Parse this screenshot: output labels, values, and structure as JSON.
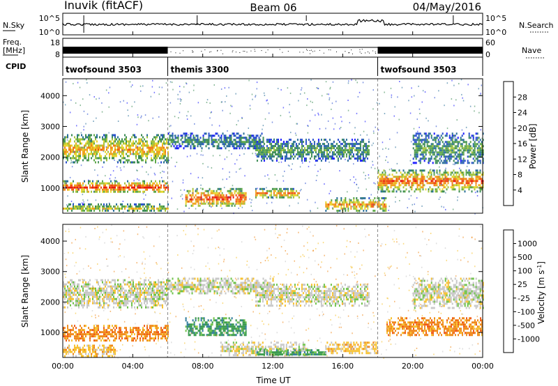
{
  "header": {
    "station": "Inuvik (fitACF)",
    "beam": "Beam 06",
    "date": "04/May/2016"
  },
  "left_labels": {
    "nsky": "N.Sky",
    "freq": "Freq.",
    "freq_unit": "[MHz]",
    "cpid": "CPID"
  },
  "right_labels": {
    "nsearch": "N.Search",
    "nave": "Nave"
  },
  "cpid_segments": [
    {
      "label": "twofsound 3503",
      "start_h": 0,
      "end_h": 6
    },
    {
      "label": "themis 3300",
      "start_h": 6,
      "end_h": 18
    },
    {
      "label": "twofsound 3503",
      "start_h": 18,
      "end_h": 24
    }
  ],
  "noise_axis": {
    "left_ticks": [
      "10^5",
      "10^0"
    ],
    "right_ticks": [
      "10^5",
      "10^0"
    ]
  },
  "freq_axis": {
    "left_ticks": [
      "18",
      "8"
    ],
    "right_ticks": [
      "60",
      "0"
    ]
  },
  "x_axis": {
    "label": "Time UT",
    "ticks": [
      "00:00",
      "04:00",
      "08:00",
      "12:00",
      "16:00",
      "20:00",
      "00:00"
    ],
    "range_hours": [
      0,
      24
    ]
  },
  "chart_data": [
    {
      "type": "heatmap",
      "name": "power",
      "ylabel": "Slant Range [km]",
      "yticks": [
        "1000",
        "2000",
        "3000",
        "4000"
      ],
      "ylim": [
        180,
        4550
      ],
      "xlim": [
        0,
        24
      ],
      "colorbar": {
        "label": "Power [dB]",
        "ticks": [
          "4",
          "8",
          "12",
          "16",
          "20",
          "24",
          "28"
        ],
        "range": [
          0,
          30
        ],
        "colors": [
          "#1a1aff",
          "#2a4fcf",
          "#2a6f9a",
          "#3c8c55",
          "#5fa84a",
          "#a4c43e",
          "#e8d62e",
          "#f0a21e",
          "#f07a1a",
          "#f04a14",
          "#e81a10"
        ]
      },
      "echo_bands": [
        {
          "t0": 0.0,
          "t1": 6.0,
          "r0": 1850,
          "r1": 2750,
          "level": 0.55
        },
        {
          "t0": 0.0,
          "t1": 6.0,
          "r0": 850,
          "r1": 1250,
          "level": 0.7
        },
        {
          "t0": 0.0,
          "t1": 6.0,
          "r0": 250,
          "r1": 500,
          "level": 0.45
        },
        {
          "t0": 6.0,
          "t1": 11.5,
          "r0": 2300,
          "r1": 2800,
          "level": 0.25
        },
        {
          "t0": 7.0,
          "t1": 10.5,
          "r0": 400,
          "r1": 1000,
          "level": 0.7
        },
        {
          "t0": 11.0,
          "t1": 17.5,
          "r0": 1900,
          "r1": 2600,
          "level": 0.3
        },
        {
          "t0": 11.0,
          "t1": 13.5,
          "r0": 700,
          "r1": 1000,
          "level": 0.6
        },
        {
          "t0": 15.0,
          "t1": 18.5,
          "r0": 250,
          "r1": 700,
          "level": 0.6
        },
        {
          "t0": 18.0,
          "t1": 24.0,
          "r0": 900,
          "r1": 1600,
          "level": 0.65
        },
        {
          "t0": 20.0,
          "t1": 24.0,
          "r0": 1800,
          "r1": 2800,
          "level": 0.3
        }
      ]
    },
    {
      "type": "heatmap",
      "name": "velocity",
      "ylabel": "Slant Range [km]",
      "yticks": [
        "1000",
        "2000",
        "3000",
        "4000"
      ],
      "ylim": [
        180,
        4550
      ],
      "xlim": [
        0,
        24
      ],
      "colorbar": {
        "label": "Velocity [m s^-1]",
        "ticks": [
          "1000",
          "500",
          "100",
          "25",
          "-25",
          "-100",
          "-500",
          "-1000"
        ],
        "colors": [
          "#2d4fc0",
          "#2d7a99",
          "#35984a",
          "#6ec248",
          "#c8c8c8",
          "#f7c12e",
          "#f08a1c",
          "#f05a18",
          "#e81a10"
        ]
      },
      "echo_bands": [
        {
          "t0": 0.0,
          "t1": 6.0,
          "r0": 1850,
          "r1": 2750,
          "v": "-25"
        },
        {
          "t0": 0.0,
          "t1": 6.0,
          "r0": 750,
          "r1": 1250,
          "v": "-500"
        },
        {
          "t0": 0.0,
          "t1": 3.0,
          "r0": 250,
          "r1": 600,
          "v": "-100"
        },
        {
          "t0": 6.0,
          "t1": 12.0,
          "r0": 2300,
          "r1": 2800,
          "v": "-25"
        },
        {
          "t0": 7.0,
          "t1": 10.5,
          "r0": 900,
          "r1": 1500,
          "v": "100"
        },
        {
          "t0": 9.0,
          "t1": 14.0,
          "r0": 250,
          "r1": 700,
          "v": "-25"
        },
        {
          "t0": 11.0,
          "t1": 17.5,
          "r0": 1900,
          "r1": 2600,
          "v": "-25"
        },
        {
          "t0": 11.0,
          "t1": 15.0,
          "r0": 250,
          "r1": 450,
          "v": "100"
        },
        {
          "t0": 15.0,
          "t1": 18.0,
          "r0": 300,
          "r1": 700,
          "v": "-100"
        },
        {
          "t0": 18.5,
          "t1": 24.0,
          "r0": 900,
          "r1": 1500,
          "v": "-500"
        },
        {
          "t0": 20.0,
          "t1": 24.0,
          "r0": 1800,
          "r1": 2800,
          "v": "-25"
        }
      ]
    }
  ]
}
